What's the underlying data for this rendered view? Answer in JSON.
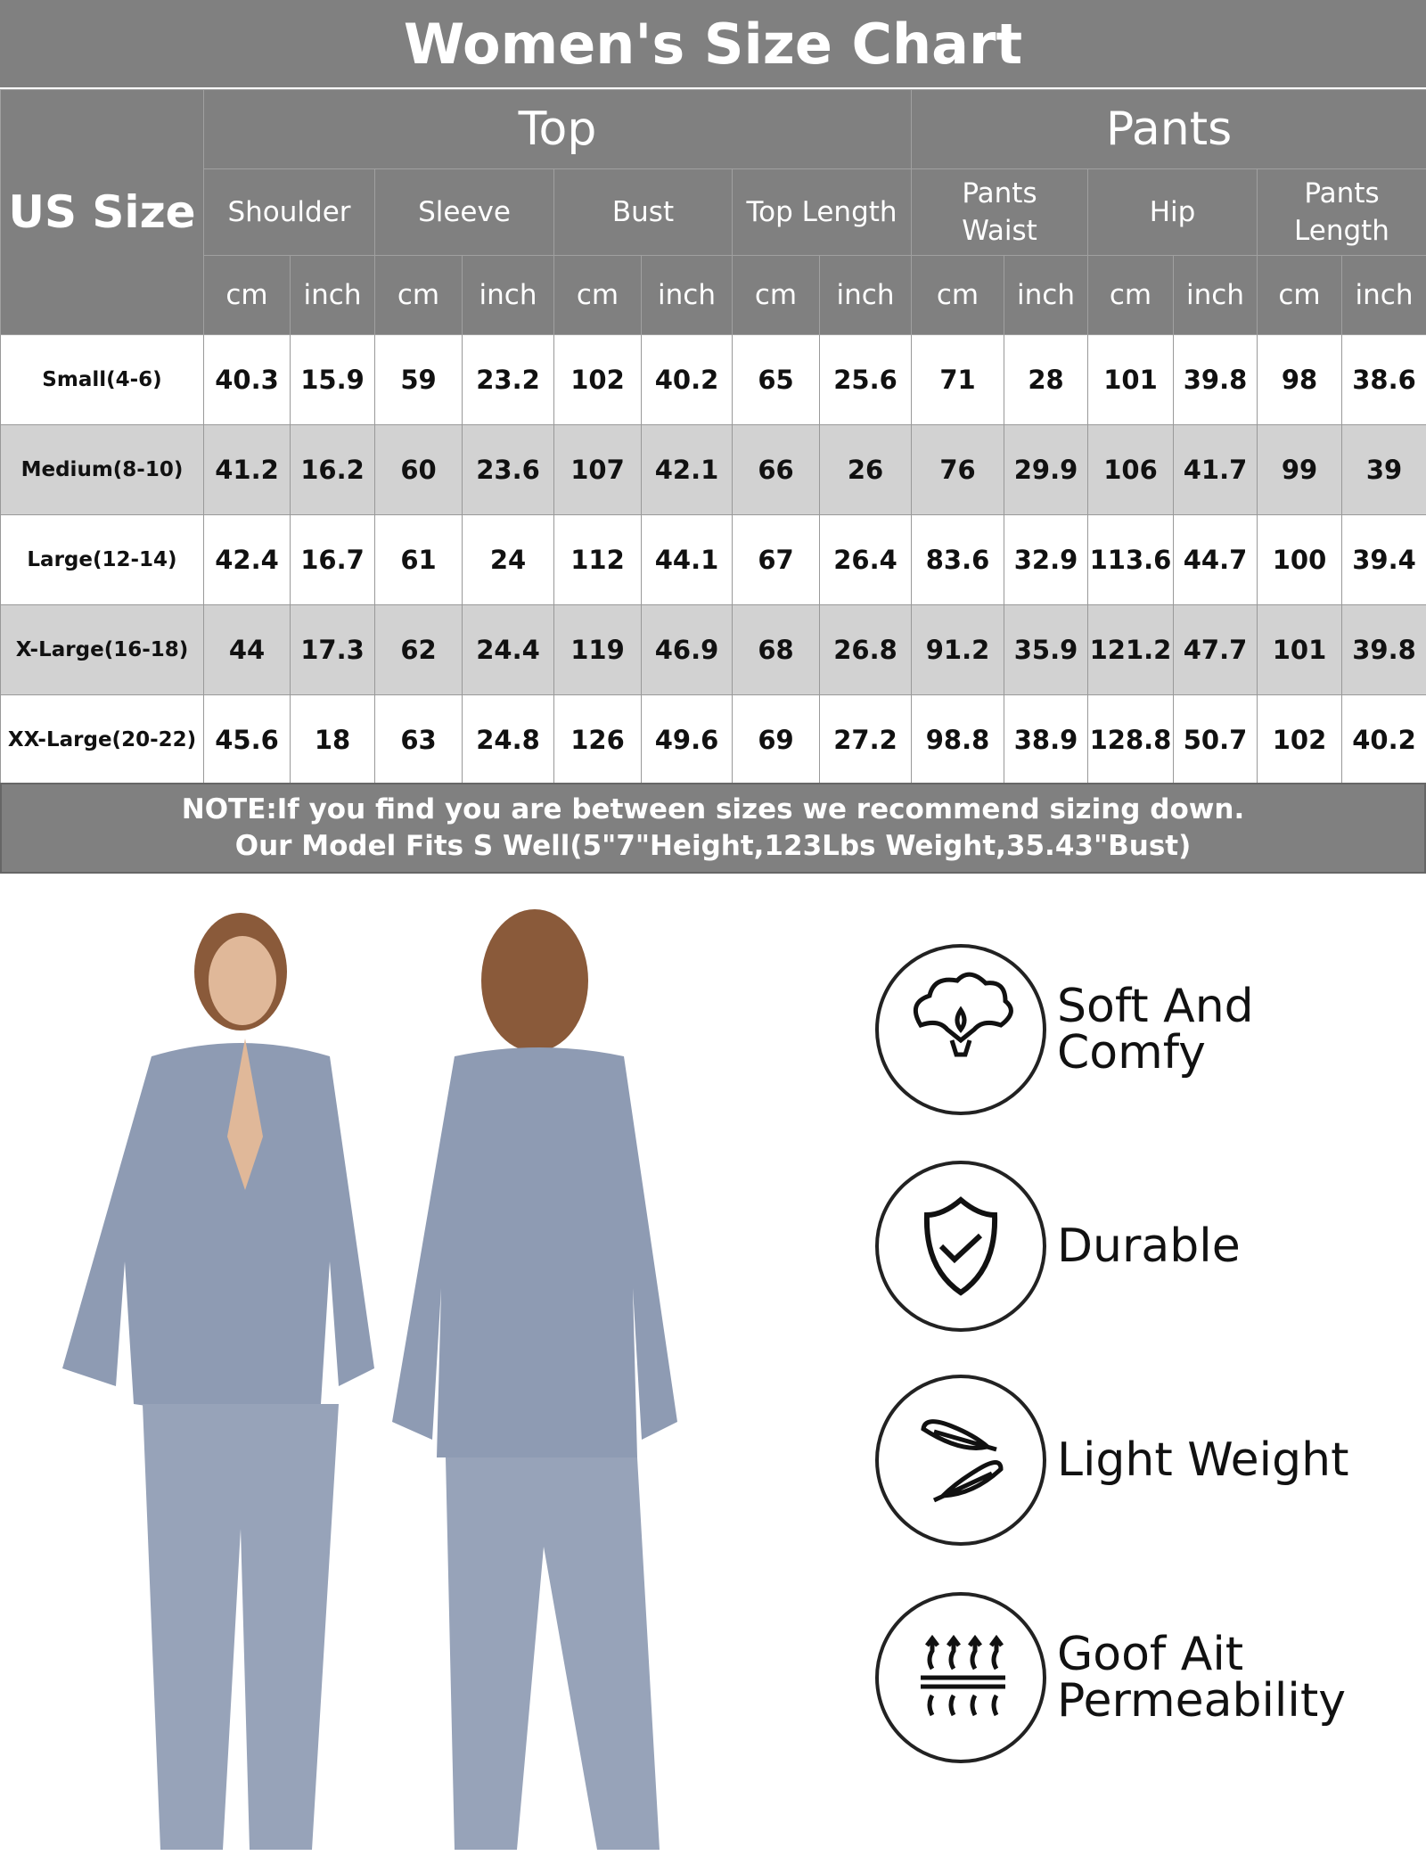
{
  "title": "Women's Size Chart",
  "headers": {
    "us_size": "US Size",
    "top": "Top",
    "pants": "Pants",
    "measurements": [
      "Shoulder",
      "Sleeve",
      "Bust",
      "Top Length",
      "Pants Waist",
      "Hip",
      "Pants Length"
    ],
    "units": [
      "cm",
      "inch"
    ]
  },
  "rows": [
    {
      "size": "Small(4-6)",
      "values": [
        "40.3",
        "15.9",
        "59",
        "23.2",
        "102",
        "40.2",
        "65",
        "25.6",
        "71",
        "28",
        "101",
        "39.8",
        "98",
        "38.6"
      ]
    },
    {
      "size": "Medium(8-10)",
      "values": [
        "41.2",
        "16.2",
        "60",
        "23.6",
        "107",
        "42.1",
        "66",
        "26",
        "76",
        "29.9",
        "106",
        "41.7",
        "99",
        "39"
      ]
    },
    {
      "size": "Large(12-14)",
      "values": [
        "42.4",
        "16.7",
        "61",
        "24",
        "112",
        "44.1",
        "67",
        "26.4",
        "83.6",
        "32.9",
        "113.6",
        "44.7",
        "100",
        "39.4"
      ]
    },
    {
      "size": "X-Large(16-18)",
      "values": [
        "44",
        "17.3",
        "62",
        "24.4",
        "119",
        "46.9",
        "68",
        "26.8",
        "91.2",
        "35.9",
        "121.2",
        "47.7",
        "101",
        "39.8"
      ]
    },
    {
      "size": "XX-Large(20-22)",
      "values": [
        "45.6",
        "18",
        "63",
        "24.8",
        "126",
        "49.6",
        "69",
        "27.2",
        "98.8",
        "38.9",
        "128.8",
        "50.7",
        "102",
        "40.2"
      ]
    }
  ],
  "note": {
    "line1": "NOTE:If you find you are between sizes we recommend sizing down.",
    "line2": "Our Model Fits S Well(5\"7\"Height,123Lbs Weight,35.43\"Bust)"
  },
  "features": [
    {
      "icon": "cotton-icon",
      "label": "Soft And Comfy"
    },
    {
      "icon": "shield-check-icon",
      "label": "Durable"
    },
    {
      "icon": "feather-icon",
      "label": "Light Weight"
    },
    {
      "icon": "air-permeability-icon",
      "label": "Goof Ait\nPermeability"
    }
  ],
  "colors": {
    "header": "#808080",
    "alt_row": "#d2d2d2",
    "garment": "#8e9bb3"
  }
}
